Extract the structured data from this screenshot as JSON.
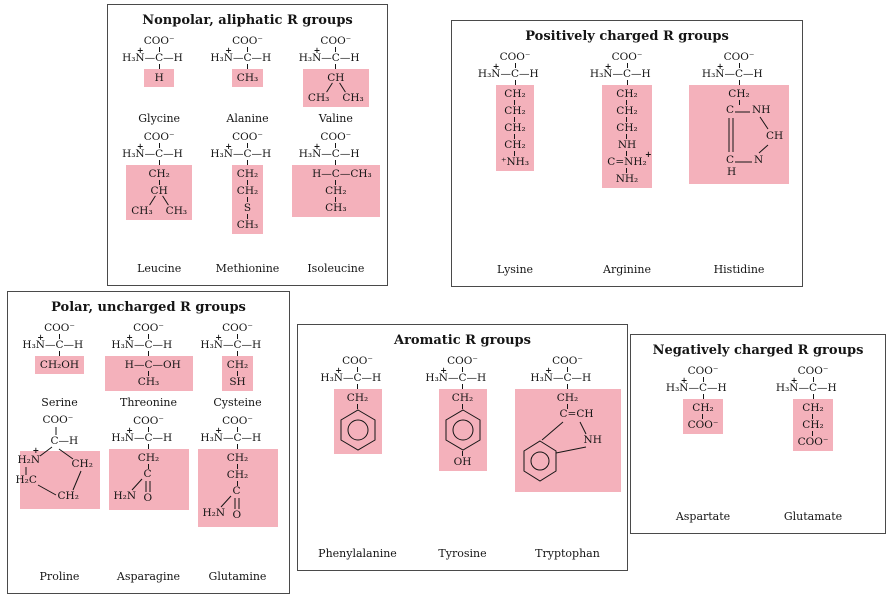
{
  "colors": {
    "highlight": "#f4b1bb",
    "bond": "#151515",
    "panel_border": "#4a4a4a",
    "background": "#ffffff"
  },
  "symbols": {
    "plus": "+"
  },
  "panels": [
    {
      "title": "Nonpolar, aliphatic R groups",
      "acids": [
        {
          "name": "Glycine",
          "rows": [
            {
              "t": "COO⁻"
            },
            {
              "bb": [
                "H₃N",
                "C",
                "H"
              ],
              "plus": "l"
            },
            {
              "t": "H",
              "hl": true
            }
          ]
        },
        {
          "name": "Alanine",
          "rows": [
            {
              "t": "COO⁻"
            },
            {
              "bb": [
                "H₃N",
                "C",
                "H"
              ],
              "plus": "l"
            },
            {
              "t": "CH₃",
              "hl": true
            }
          ]
        },
        {
          "name": "Valine",
          "rows": [
            {
              "t": "COO⁻"
            },
            {
              "bb": [
                "H₃N",
                "C",
                "H"
              ],
              "plus": "l"
            },
            {
              "t": "CH",
              "hl": true
            },
            {
              "pair": [
                "CH₃",
                "CH₃"
              ],
              "hl": true,
              "pre": "diag"
            }
          ]
        },
        {
          "name": "Leucine",
          "rows": [
            {
              "t": "COO⁻"
            },
            {
              "bb": [
                "H₃N",
                "C",
                "H"
              ],
              "plus": "l"
            },
            {
              "t": "CH₂",
              "hl": true
            },
            {
              "t": "CH",
              "hl": true
            },
            {
              "pair": [
                "CH₃",
                "CH₃"
              ],
              "hl": true,
              "pre": "diag"
            }
          ]
        },
        {
          "name": "Methionine",
          "rows": [
            {
              "t": "COO⁻"
            },
            {
              "bb": [
                "H₃N",
                "C",
                "H"
              ],
              "plus": "l"
            },
            {
              "t": "CH₂",
              "hl": true
            },
            {
              "t": "CH₂",
              "hl": true
            },
            {
              "t": "S",
              "hl": true
            },
            {
              "t": "CH₃",
              "hl": true
            }
          ]
        },
        {
          "name": "Isoleucine",
          "rows": [
            {
              "t": "COO⁻"
            },
            {
              "bb": [
                "H₃N",
                "C",
                "H"
              ],
              "plus": "l"
            },
            {
              "bb": [
                "H",
                "C",
                "CH₃"
              ],
              "hl": true
            },
            {
              "t": "CH₂",
              "hl": true
            },
            {
              "t": "CH₃",
              "hl": true
            }
          ]
        }
      ]
    },
    {
      "title": "Positively charged R groups",
      "acids": [
        {
          "name": "Lysine",
          "rows": [
            {
              "t": "COO⁻"
            },
            {
              "bb": [
                "H₃N",
                "C",
                "H"
              ],
              "plus": "l"
            },
            {
              "t": "CH₂",
              "hl": true
            },
            {
              "t": "CH₂",
              "hl": true
            },
            {
              "t": "CH₂",
              "hl": true
            },
            {
              "t": "CH₂",
              "hl": true
            },
            {
              "t": "⁺NH₃",
              "hl": true
            }
          ]
        },
        {
          "name": "Arginine",
          "rows": [
            {
              "t": "COO⁻"
            },
            {
              "bb": [
                "H₃N",
                "C",
                "H"
              ],
              "plus": "l"
            },
            {
              "t": "CH₂",
              "hl": true
            },
            {
              "t": "CH₂",
              "hl": true
            },
            {
              "t": "CH₂",
              "hl": true
            },
            {
              "t": "NH",
              "hl": true
            },
            {
              "t": "C=NH₂",
              "plus": "r",
              "hl": true
            },
            {
              "t": "NH₂",
              "hl": true
            }
          ]
        },
        {
          "name": "Histidine",
          "rows": [
            {
              "t": "COO⁻"
            },
            {
              "bb": [
                "H₃N",
                "C",
                "H"
              ],
              "plus": "l"
            },
            {
              "t": "CH₂",
              "hl": true
            },
            {
              "imid": {
                "c1": "C",
                "n1": "NH",
                "c2": "CH",
                "c3": "C",
                "n2": "N",
                "h": "H"
              },
              "hl": true
            }
          ]
        }
      ]
    },
    {
      "title": "Polar, uncharged R groups",
      "acids": [
        {
          "name": "Serine",
          "rows": [
            {
              "t": "COO⁻"
            },
            {
              "bb": [
                "H₃N",
                "C",
                "H"
              ],
              "plus": "l"
            },
            {
              "t": "CH₂OH",
              "hl": true
            }
          ]
        },
        {
          "name": "Threonine",
          "rows": [
            {
              "t": "COO⁻"
            },
            {
              "bb": [
                "H₃N",
                "C",
                "H"
              ],
              "plus": "l"
            },
            {
              "bb": [
                "H",
                "C",
                "OH"
              ],
              "hl": true
            },
            {
              "t": "CH₃",
              "hl": true
            }
          ]
        },
        {
          "name": "Cysteine",
          "rows": [
            {
              "t": "COO⁻"
            },
            {
              "bb": [
                "H₃N",
                "C",
                "H"
              ],
              "plus": "l"
            },
            {
              "t": "CH₂",
              "hl": true
            },
            {
              "t": "SH",
              "hl": true
            }
          ]
        },
        {
          "name": "Proline",
          "proline": {
            "coo": "COO⁻",
            "alpha": "C—H",
            "n": "H₂N",
            "plus": "+",
            "c1": "CH₂",
            "c2": "CH₂",
            "c3": "H₂C"
          }
        },
        {
          "name": "Asparagine",
          "rows": [
            {
              "t": "COO⁻"
            },
            {
              "bb": [
                "H₃N",
                "C",
                "H"
              ],
              "plus": "l"
            },
            {
              "t": "CH₂",
              "hl": true
            },
            {
              "branch": {
                "top": "C",
                "left": "H₂N",
                "right": "O"
              },
              "hl": true
            }
          ]
        },
        {
          "name": "Glutamine",
          "rows": [
            {
              "t": "COO⁻"
            },
            {
              "bb": [
                "H₃N",
                "C",
                "H"
              ],
              "plus": "l"
            },
            {
              "t": "CH₂",
              "hl": true
            },
            {
              "t": "CH₂",
              "hl": true
            },
            {
              "branch": {
                "top": "C",
                "left": "H₂N",
                "right": "O"
              },
              "hl": true
            }
          ]
        }
      ]
    },
    {
      "title": "Aromatic R groups",
      "acids": [
        {
          "name": "Phenylalanine",
          "rows": [
            {
              "t": "COO⁻"
            },
            {
              "bb": [
                "H₃N",
                "C",
                "H"
              ],
              "plus": "l"
            },
            {
              "t": "CH₂",
              "hl": true
            },
            {
              "ring": "benzene",
              "hl": true
            }
          ]
        },
        {
          "name": "Tyrosine",
          "rows": [
            {
              "t": "COO⁻"
            },
            {
              "bb": [
                "H₃N",
                "C",
                "H"
              ],
              "plus": "l"
            },
            {
              "t": "CH₂",
              "hl": true
            },
            {
              "ring": "benzene",
              "hl": true
            },
            {
              "t": "OH",
              "hl": true
            }
          ]
        },
        {
          "name": "Tryptophan",
          "rows": [
            {
              "t": "COO⁻"
            },
            {
              "bb": [
                "H₃N",
                "C",
                "H"
              ],
              "plus": "l"
            },
            {
              "t": "CH₂",
              "hl": true
            },
            {
              "indole": {
                "cch": "C=CH",
                "nh": "NH"
              },
              "hl": true
            }
          ]
        }
      ]
    },
    {
      "title": "Negatively charged R groups",
      "acids": [
        {
          "name": "Aspartate",
          "rows": [
            {
              "t": "COO⁻"
            },
            {
              "bb": [
                "H₃N",
                "C",
                "H"
              ],
              "plus": "l"
            },
            {
              "t": "CH₂",
              "hl": true
            },
            {
              "t": "COO⁻",
              "hl": true
            }
          ]
        },
        {
          "name": "Glutamate",
          "rows": [
            {
              "t": "COO⁻"
            },
            {
              "bb": [
                "H₃N",
                "C",
                "H"
              ],
              "plus": "l"
            },
            {
              "t": "CH₂",
              "hl": true
            },
            {
              "t": "CH₂",
              "hl": true
            },
            {
              "t": "COO⁻",
              "hl": true
            }
          ]
        }
      ]
    }
  ]
}
